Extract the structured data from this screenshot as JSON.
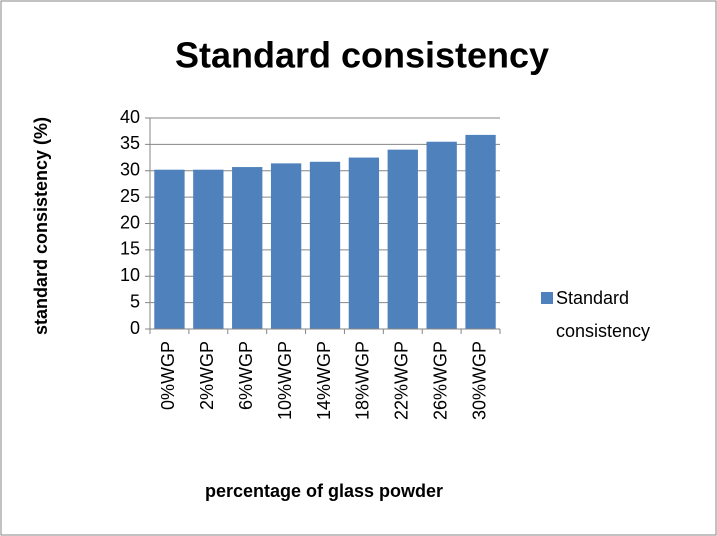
{
  "chart_data": {
    "type": "bar",
    "title": "Standard consistency",
    "x_label": "percentage of glass powder",
    "y_label": "standard consistency (%)",
    "categories": [
      "0%WGP",
      "2%WGP",
      "6%WGP",
      "10%WGP",
      "14%WGP",
      "18%WGP",
      "22%WGP",
      "26%WGP",
      "30%WGP"
    ],
    "series": [
      {
        "name": "Standard consistency",
        "color": "#4f81bd",
        "values": [
          30.2,
          30.2,
          30.7,
          31.4,
          31.7,
          32.5,
          34,
          35.5,
          36.8
        ]
      }
    ],
    "ylim": [
      0,
      40
    ],
    "yticks": [
      0,
      5,
      10,
      15,
      20,
      25,
      30,
      35,
      40
    ],
    "grid": true,
    "legend": "right"
  }
}
